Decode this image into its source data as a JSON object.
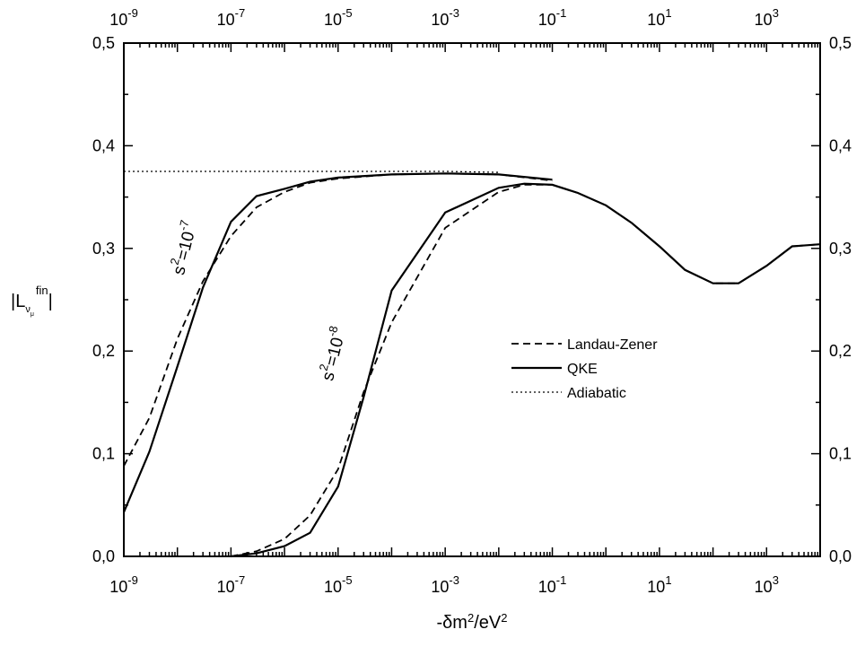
{
  "chart_data": {
    "type": "line",
    "xscale": "log",
    "xlim": [
      1e-09,
      10000
    ],
    "ylim": [
      0.0,
      0.5
    ],
    "xlabel": "-δm²/eV²",
    "ylabel": "|L_νμ^fin|",
    "x_ticks": [
      {
        "value": 1e-09,
        "base": "10",
        "exp": "-9"
      },
      {
        "value": 1e-07,
        "base": "10",
        "exp": "-7"
      },
      {
        "value": 1e-05,
        "base": "10",
        "exp": "-5"
      },
      {
        "value": 0.001,
        "base": "10",
        "exp": "-3"
      },
      {
        "value": 0.1,
        "base": "10",
        "exp": "-1"
      },
      {
        "value": 10,
        "base": "10",
        "exp": "1"
      },
      {
        "value": 1000,
        "base": "10",
        "exp": "3"
      }
    ],
    "y_ticks": [
      0.0,
      0.1,
      0.2,
      0.3,
      0.4,
      0.5
    ],
    "y_tick_labels": [
      "0,0",
      "0,1",
      "0,2",
      "0,3",
      "0,4",
      "0,5"
    ],
    "legend": {
      "placement": "center-right",
      "entries": [
        {
          "label": "Landau-Zener",
          "style": "dashed"
        },
        {
          "label": "QKE",
          "style": "solid"
        },
        {
          "label": "Adiabatic",
          "style": "dotted"
        }
      ]
    },
    "annotations": [
      {
        "id": "s7",
        "text_base": "s",
        "text_sup1": "2",
        "text_mid": "=10",
        "text_sup2": "-7"
      },
      {
        "id": "s8",
        "text_base": "s",
        "text_sup1": "2",
        "text_mid": "=10",
        "text_sup2": "-8"
      }
    ],
    "series": [
      {
        "id": "adiabatic",
        "style": "dotted",
        "x": [
          1e-09,
          1e-08,
          1e-07,
          1e-06,
          1e-05,
          0.0001,
          0.001,
          0.01
        ],
        "y": [
          0.375,
          0.375,
          0.375,
          0.375,
          0.375,
          0.375,
          0.375,
          0.374
        ]
      },
      {
        "id": "qke_s7",
        "style": "solid",
        "x": [
          1e-09,
          3e-09,
          1e-08,
          3e-08,
          1e-07,
          3e-07,
          1e-06,
          3e-06,
          1e-05,
          0.0001,
          0.001,
          0.01,
          0.1
        ],
        "y": [
          0.043,
          0.102,
          0.185,
          0.262,
          0.326,
          0.351,
          0.358,
          0.365,
          0.369,
          0.372,
          0.373,
          0.372,
          0.367
        ]
      },
      {
        "id": "lz_s7",
        "style": "dashed",
        "x": [
          1e-09,
          3e-09,
          1e-08,
          3e-08,
          1e-07,
          3e-07,
          1e-06,
          3e-06,
          1e-05,
          0.0001,
          0.001,
          0.01,
          0.1
        ],
        "y": [
          0.088,
          0.135,
          0.212,
          0.268,
          0.312,
          0.34,
          0.355,
          0.364,
          0.368,
          0.372,
          0.373,
          0.372,
          0.366
        ]
      },
      {
        "id": "qke_s8",
        "style": "solid",
        "x": [
          1e-07,
          3e-07,
          1e-06,
          3e-06,
          1e-05,
          3e-05,
          0.0001,
          0.001,
          0.01,
          0.03,
          0.1,
          0.3,
          1,
          3,
          10,
          30,
          100,
          300,
          1000,
          3000,
          10000
        ],
        "y": [
          0.0,
          0.003,
          0.01,
          0.023,
          0.068,
          0.155,
          0.259,
          0.335,
          0.359,
          0.363,
          0.362,
          0.354,
          0.342,
          0.325,
          0.302,
          0.279,
          0.266,
          0.266,
          0.283,
          0.302,
          0.304
        ]
      },
      {
        "id": "lz_s8",
        "style": "dashed",
        "x": [
          1e-07,
          3e-07,
          1e-06,
          3e-06,
          1e-05,
          3e-05,
          0.0001,
          0.001,
          0.01,
          0.03,
          0.1,
          0.3,
          1,
          3,
          10,
          30,
          100,
          300,
          1000,
          3000,
          10000
        ],
        "y": [
          0.0,
          0.005,
          0.017,
          0.04,
          0.085,
          0.16,
          0.228,
          0.32,
          0.355,
          0.362,
          0.362,
          0.354,
          0.342,
          0.325,
          0.302,
          0.279,
          0.266,
          0.266,
          0.283,
          0.302,
          0.304
        ]
      }
    ]
  }
}
